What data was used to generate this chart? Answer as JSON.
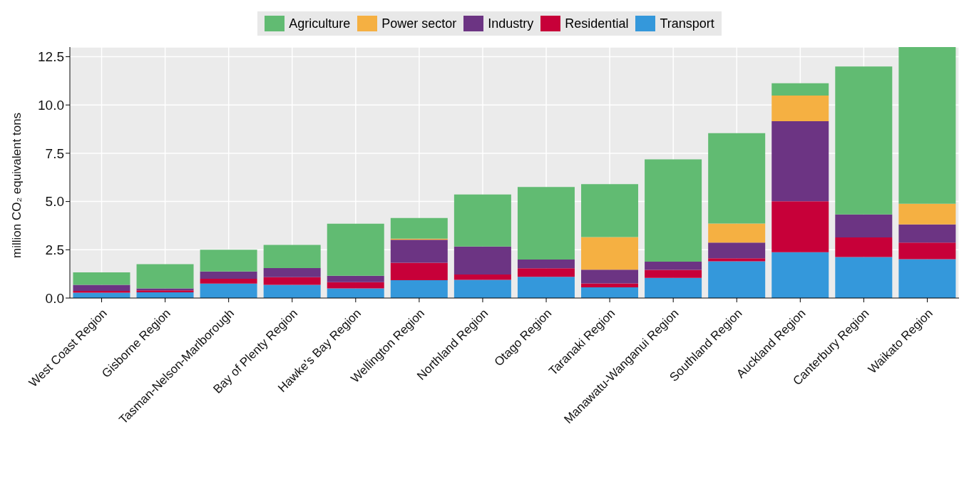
{
  "chart_data": {
    "type": "bar",
    "stacked": true,
    "ylabel": "million CO₂ equivalent tons",
    "categories": [
      "West Coast Region",
      "Gisborne Region",
      "Tasman-Nelson-Marlborough",
      "Bay of Plenty Region",
      "Hawke's Bay Region",
      "Wellington Region",
      "Northland Region",
      "Otago Region",
      "Taranaki Region",
      "Manawatu-Wanganui Region",
      "Southland Region",
      "Auckland Region",
      "Canterbury Region",
      "Waikato Region"
    ],
    "series": [
      {
        "name": "Transport",
        "color": "#3498db",
        "values": [
          0.28,
          0.3,
          0.75,
          0.68,
          0.5,
          0.92,
          0.94,
          1.1,
          0.55,
          1.04,
          1.9,
          2.37,
          2.12,
          2.01
        ]
      },
      {
        "name": "Residential",
        "color": "#c70039",
        "values": [
          0.09,
          0.1,
          0.25,
          0.4,
          0.32,
          0.91,
          0.28,
          0.44,
          0.21,
          0.42,
          0.16,
          2.64,
          1.02,
          0.86
        ]
      },
      {
        "name": "Industry",
        "color": "#6c3483",
        "values": [
          0.31,
          0.1,
          0.38,
          0.47,
          0.33,
          1.19,
          1.45,
          0.45,
          0.71,
          0.42,
          0.81,
          4.15,
          1.19,
          0.94
        ]
      },
      {
        "name": "Power sector",
        "color": "#f5b042",
        "values": [
          null,
          null,
          null,
          null,
          null,
          0.05,
          null,
          null,
          1.69,
          null,
          0.99,
          1.33,
          null,
          1.07
        ]
      },
      {
        "name": "Agriculture",
        "color": "#61bb72",
        "values": [
          0.65,
          1.25,
          1.12,
          1.2,
          2.7,
          1.08,
          2.69,
          3.76,
          2.74,
          5.3,
          4.68,
          0.64,
          7.66,
          8.12
        ]
      }
    ],
    "ylim": [
      0,
      13
    ],
    "yticks": [
      {
        "value": 0,
        "label": "0.0"
      },
      {
        "value": 2.5,
        "label": "2.5"
      },
      {
        "value": 5,
        "label": "5.0"
      },
      {
        "value": 7.5,
        "label": "7.5"
      },
      {
        "value": 10,
        "label": "10.0"
      },
      {
        "value": 12.5,
        "label": "12.5"
      }
    ],
    "grid": true,
    "legend": "top"
  }
}
